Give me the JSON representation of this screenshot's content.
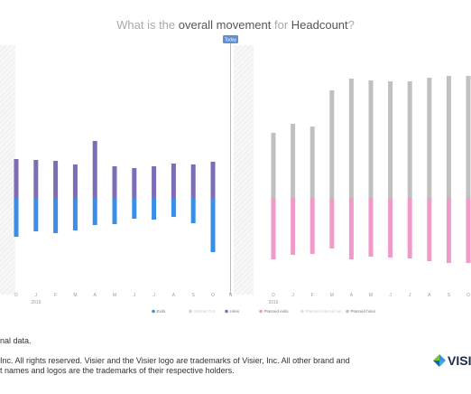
{
  "title": {
    "part1": "What is the ",
    "part2": "overall movement",
    "part3": " for ",
    "part4": "Headcount",
    "part5": "?"
  },
  "today_label": "Today",
  "footer": {
    "note": "nal data.",
    "legal_line1": "Inc. All rights reserved. Visier and the Visier logo are trademarks of Visier, Inc. All other brand and",
    "legal_line2": "t names and logos are the trademarks of their respective holders."
  },
  "logo_text": "VISI",
  "colors": {
    "hires": "#7d6db5",
    "exits": "#3a8ee6",
    "planned_hires": "#c0c0c0",
    "planned_exits": "#ef9ac9",
    "today_badge": "#5b8fd6",
    "hatch": "#eeeeee"
  },
  "chart_data": {
    "type": "bar",
    "stacked": true,
    "baseline": 0,
    "actual": {
      "x": [
        "D",
        "J",
        "F",
        "M",
        "A",
        "M",
        "J",
        "J",
        "A",
        "S",
        "O"
      ],
      "year_label": "2015",
      "hires": [
        43,
        42,
        41,
        37,
        63,
        35,
        33,
        35,
        38,
        37,
        40
      ],
      "exits": [
        -43,
        -37,
        -39,
        -36,
        -30,
        -29,
        -23,
        -24,
        -21,
        -28,
        -60
      ]
    },
    "plan": {
      "x": [
        "D",
        "J",
        "F",
        "M",
        "A",
        "M",
        "J",
        "J",
        "A",
        "S",
        "O"
      ],
      "year_label": "2016",
      "planned_hires": [
        72,
        82,
        79,
        119,
        132,
        130,
        129,
        129,
        133,
        135,
        135
      ],
      "planned_exits": [
        -68,
        -63,
        -62,
        -56,
        -68,
        -65,
        -66,
        -67,
        -70,
        -72,
        -72
      ]
    },
    "legend": [
      {
        "label": "Exits",
        "color": "#3a8ee6",
        "faded": false
      },
      {
        "label": "Internal Out",
        "color": "#bcd6f5",
        "faded": true
      },
      {
        "label": "Hires",
        "color": "#7d6db5",
        "faded": false
      },
      {
        "label": "Planned exits",
        "color": "#ef9ac9",
        "faded": false
      },
      {
        "label": "Planned internal out",
        "color": "#f6cfe4",
        "faded": true
      },
      {
        "label": "Planned hires",
        "color": "#c0c0c0",
        "faded": false
      }
    ],
    "legend_position": "bottom",
    "grid": false
  }
}
